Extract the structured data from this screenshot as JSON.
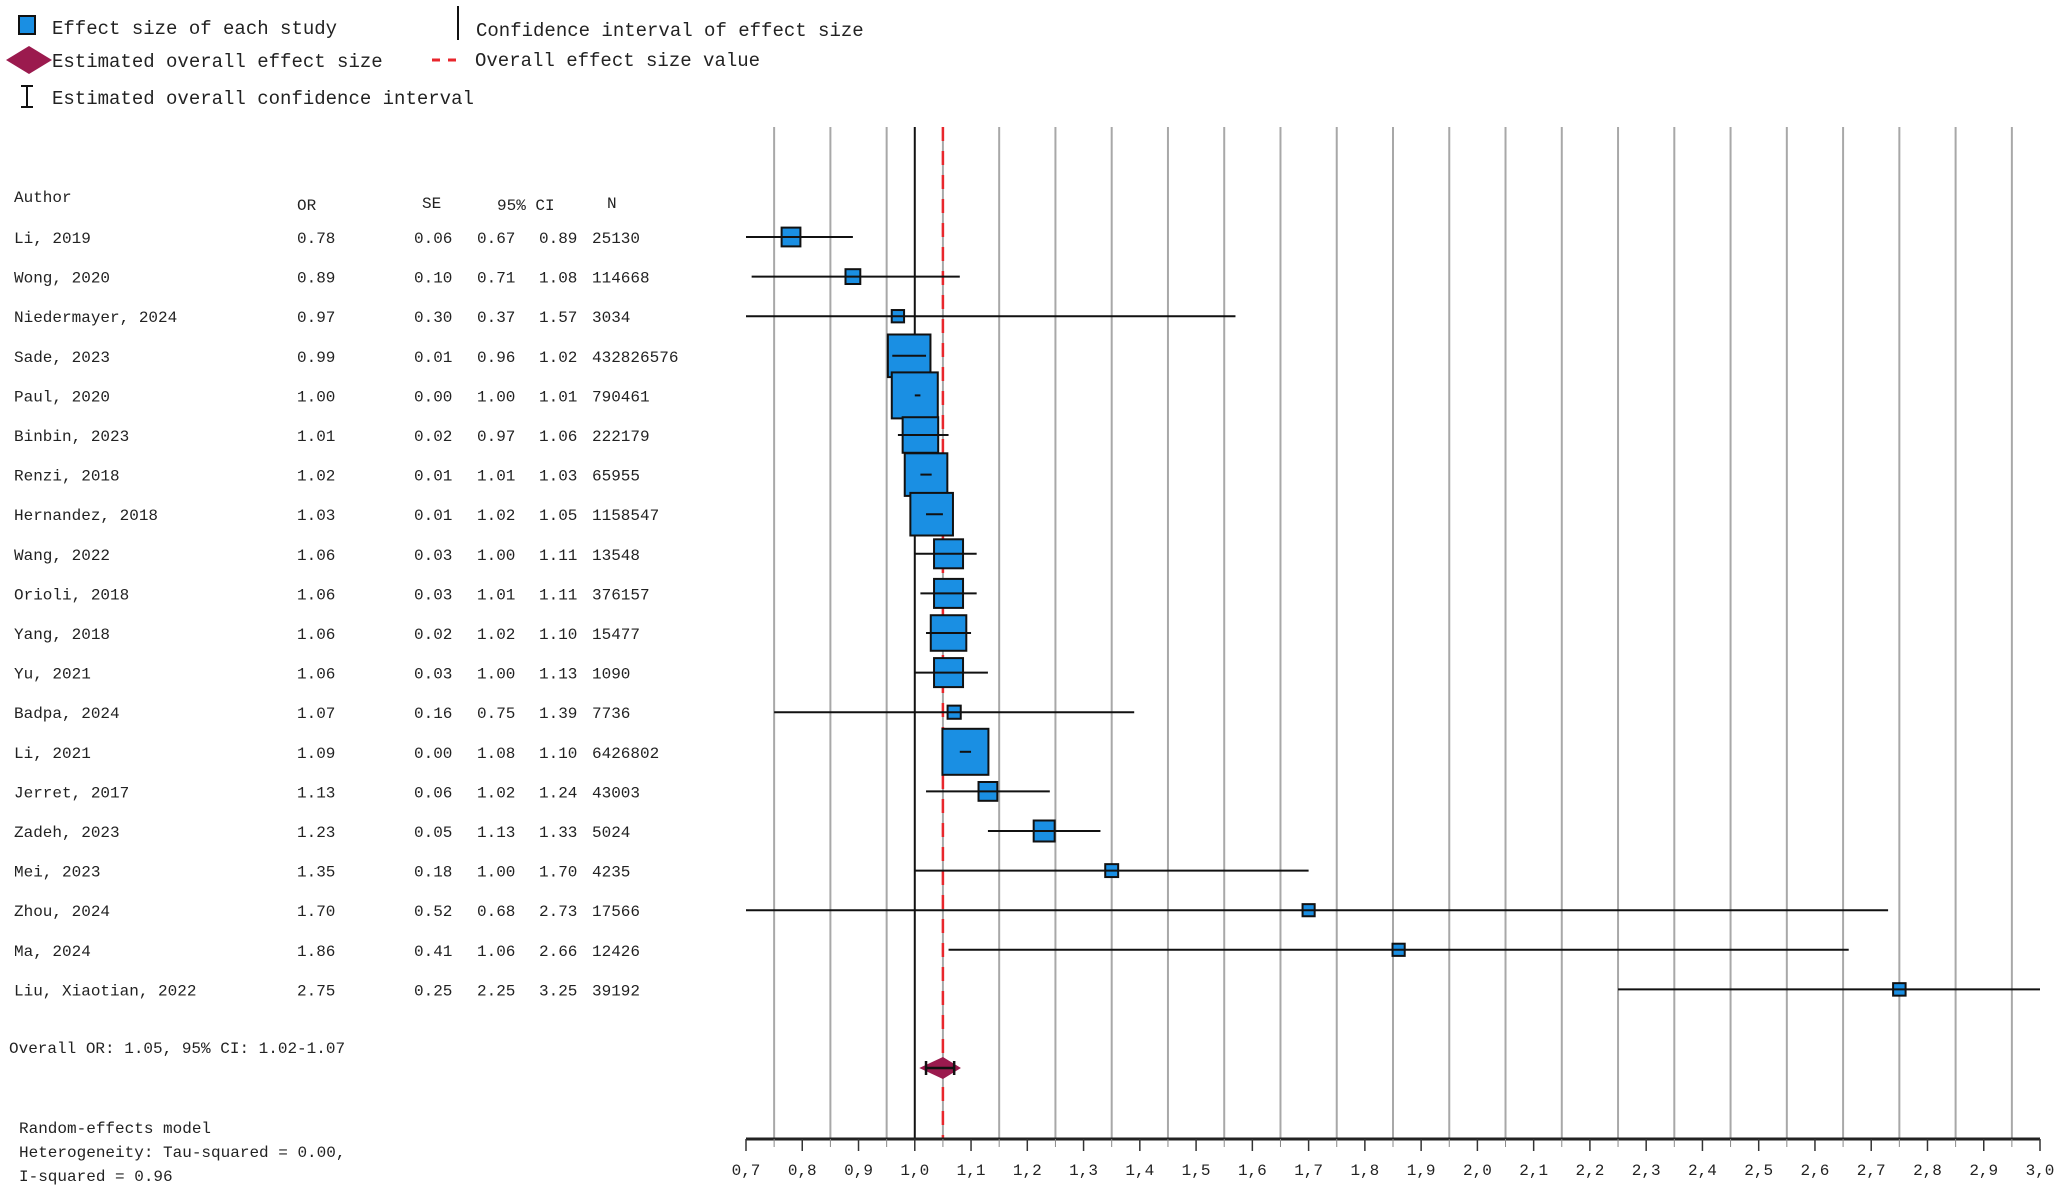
{
  "legend": {
    "study_effect": "Effect size of each study",
    "study_ci": "Confidence interval of effect size",
    "overall_effect": "Estimated overall effect size",
    "overall_value": "Overall effect size value",
    "overall_ci": "Estimated overall confidence interval"
  },
  "colors": {
    "box": "#1a8fe3",
    "diamond": "#9b1a4e",
    "dashed": "#e8262c",
    "grid": "#a8a8a8"
  },
  "chart_data": {
    "type": "forest",
    "measure": "OR",
    "columns": [
      "Author",
      "OR",
      "SE",
      "95% CI",
      "N"
    ],
    "xlim": [
      0.7,
      3.0
    ],
    "reference_line": 1.0,
    "tick_labels": [
      "0,7",
      "0,8",
      "0,9",
      "1,0",
      "1,1",
      "1,2",
      "1,3",
      "1,4",
      "1,5",
      "1,6",
      "1,7",
      "1,8",
      "1,9",
      "2,0",
      "2,1",
      "2,2",
      "2,3",
      "2,4",
      "2,5",
      "2,6",
      "2,7",
      "2,8",
      "2,9",
      "3,0"
    ],
    "studies": [
      {
        "author": "Li, 2019",
        "or": "0.78",
        "se": "0.06",
        "lo": "0.67",
        "hi": "0.89",
        "n": "25130"
      },
      {
        "author": "Wong, 2020",
        "or": "0.89",
        "se": "0.10",
        "lo": "0.71",
        "hi": "1.08",
        "n": "114668"
      },
      {
        "author": "Niedermayer, 2024",
        "or": "0.97",
        "se": "0.30",
        "lo": "0.37",
        "hi": "1.57",
        "n": "3034"
      },
      {
        "author": "Sade, 2023",
        "or": "0.99",
        "se": "0.01",
        "lo": "0.96",
        "hi": "1.02",
        "n": "432826576"
      },
      {
        "author": "Paul, 2020",
        "or": "1.00",
        "se": "0.00",
        "lo": "1.00",
        "hi": "1.01",
        "n": "790461"
      },
      {
        "author": "Binbin, 2023",
        "or": "1.01",
        "se": "0.02",
        "lo": "0.97",
        "hi": "1.06",
        "n": "222179"
      },
      {
        "author": "Renzi, 2018",
        "or": "1.02",
        "se": "0.01",
        "lo": "1.01",
        "hi": "1.03",
        "n": "65955"
      },
      {
        "author": "Hernandez, 2018",
        "or": "1.03",
        "se": "0.01",
        "lo": "1.02",
        "hi": "1.05",
        "n": "1158547"
      },
      {
        "author": "Wang, 2022",
        "or": "1.06",
        "se": "0.03",
        "lo": "1.00",
        "hi": "1.11",
        "n": "13548"
      },
      {
        "author": "Orioli, 2018",
        "or": "1.06",
        "se": "0.03",
        "lo": "1.01",
        "hi": "1.11",
        "n": "376157"
      },
      {
        "author": "Yang, 2018",
        "or": "1.06",
        "se": "0.02",
        "lo": "1.02",
        "hi": "1.10",
        "n": "15477"
      },
      {
        "author": "Yu, 2021",
        "or": "1.06",
        "se": "0.03",
        "lo": "1.00",
        "hi": "1.13",
        "n": "1090"
      },
      {
        "author": "Badpa, 2024",
        "or": "1.07",
        "se": "0.16",
        "lo": "0.75",
        "hi": "1.39",
        "n": "7736"
      },
      {
        "author": "Li, 2021",
        "or": "1.09",
        "se": "0.00",
        "lo": "1.08",
        "hi": "1.10",
        "n": "6426802"
      },
      {
        "author": "Jerret, 2017",
        "or": "1.13",
        "se": "0.06",
        "lo": "1.02",
        "hi": "1.24",
        "n": "43003"
      },
      {
        "author": "Zadeh, 2023",
        "or": "1.23",
        "se": "0.05",
        "lo": "1.13",
        "hi": "1.33",
        "n": "5024"
      },
      {
        "author": "Mei, 2023",
        "or": "1.35",
        "se": "0.18",
        "lo": "1.00",
        "hi": "1.70",
        "n": "4235"
      },
      {
        "author": "Zhou, 2024",
        "or": "1.70",
        "se": "0.52",
        "lo": "0.68",
        "hi": "2.73",
        "n": "17566"
      },
      {
        "author": "Ma, 2024",
        "or": "1.86",
        "se": "0.41",
        "lo": "1.06",
        "hi": "2.66",
        "n": "12426"
      },
      {
        "author": "Liu, Xiaotian, 2022",
        "or": "2.75",
        "se": "0.25",
        "lo": "2.25",
        "hi": "3.25",
        "n": "39192"
      }
    ],
    "overall": {
      "or": 1.05,
      "lo": 1.02,
      "hi": 1.07,
      "label": "Overall OR: 1.05, 95% CI: 1.02-1.07"
    },
    "model": "Random-effects model",
    "heterogeneity": "Heterogeneity: Tau-squared = 0.00,",
    "i_squared": "I-squared = 0.96"
  }
}
